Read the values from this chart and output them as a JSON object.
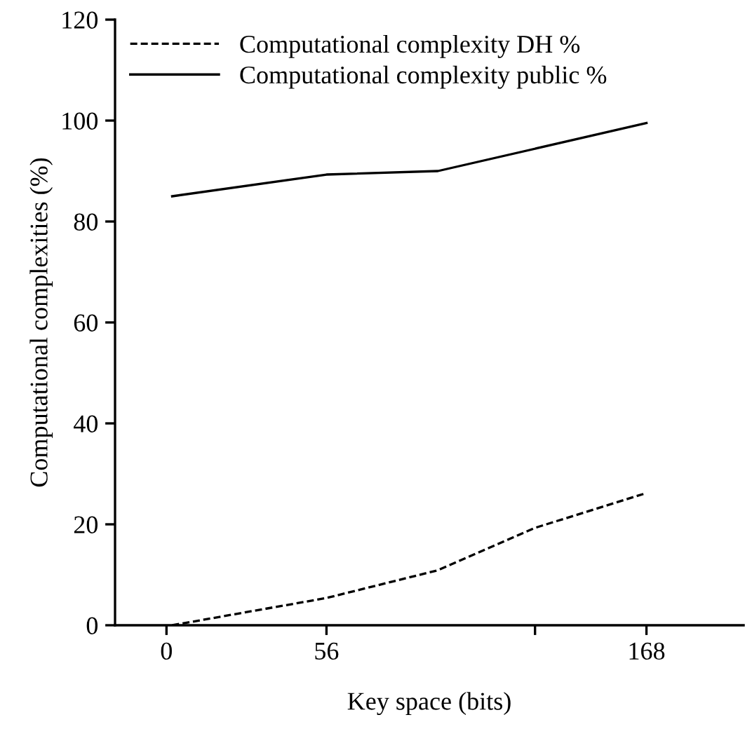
{
  "chart_data": {
    "type": "line",
    "xlabel": "Key space (bits)",
    "ylabel": "Computational complexities (%)",
    "xlim": [
      -18,
      202
    ],
    "xticks": [
      {
        "value": 0,
        "label": "0"
      },
      {
        "value": 56,
        "label": "56"
      },
      {
        "value": 129,
        "label": null
      },
      {
        "value": 168,
        "label": "168"
      }
    ],
    "ylim": [
      0,
      120
    ],
    "yticks": [
      0,
      20,
      40,
      60,
      80,
      100,
      120
    ],
    "legend": "top left",
    "grid": false,
    "marker": "none",
    "series": [
      {
        "name": "Computational complexity DH %",
        "color": "#000000",
        "line_style": "dashed",
        "x": [
          2,
          56,
          95,
          129,
          168
        ],
        "values": [
          0,
          5.4,
          10.9,
          19.3,
          26.2
        ]
      },
      {
        "name": "Computational complexity public %",
        "color": "#000000",
        "line_style": "solid",
        "x": [
          2,
          56,
          95,
          168
        ],
        "values": [
          85,
          89.3,
          90,
          99.5
        ]
      }
    ]
  }
}
